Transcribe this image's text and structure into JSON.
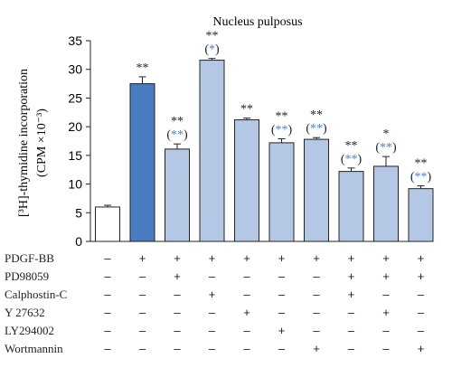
{
  "chart_data": {
    "type": "bar",
    "title": "Nucleus pulposus",
    "ylabel_line1": "[³H]-thymidine incorporation",
    "ylabel_line2": "(CPM ×10⁻³)",
    "ylim": [
      0,
      35
    ],
    "yticks": [
      "0",
      "5",
      "10",
      "15",
      "20",
      "25",
      "30",
      "35"
    ],
    "grid": false,
    "values": [
      6.0,
      27.5,
      16.1,
      31.6,
      21.2,
      17.2,
      17.8,
      12.2,
      13.1,
      9.2
    ],
    "errors": [
      0.3,
      1.2,
      0.9,
      0.3,
      0.3,
      0.7,
      0.3,
      0.6,
      1.7,
      0.5
    ],
    "colors": {
      "control": "#ffffff",
      "pdgf": "#4a7cc0",
      "inhibitor": "#b4c8e6",
      "outline": "#222222",
      "paren_stars": "#4a82c4"
    },
    "bar_style": [
      "control",
      "pdgf",
      "inhibitor",
      "inhibitor",
      "inhibitor",
      "inhibitor",
      "inhibitor",
      "inhibitor",
      "inhibitor",
      "inhibitor"
    ],
    "sig_top": [
      "",
      "**",
      "**",
      "**",
      "**",
      "**",
      "**",
      "**",
      "*",
      "**"
    ],
    "sig_paren": [
      "",
      "",
      "**",
      "*",
      "",
      "**",
      "**",
      "**",
      "**",
      "**"
    ],
    "treatments": [
      {
        "name": "PDGF-BB",
        "marks": [
          "–",
          "+",
          "+",
          "+",
          "+",
          "+",
          "+",
          "+",
          "+",
          "+"
        ]
      },
      {
        "name": "PD98059",
        "marks": [
          "–",
          "–",
          "+",
          "–",
          "–",
          "–",
          "–",
          "+",
          "+",
          "+"
        ]
      },
      {
        "name": "Calphostin-C",
        "marks": [
          "–",
          "–",
          "–",
          "+",
          "–",
          "–",
          "–",
          "+",
          "–",
          "–"
        ]
      },
      {
        "name": "Y 27632",
        "marks": [
          "–",
          "–",
          "–",
          "–",
          "+",
          "–",
          "–",
          "–",
          "+",
          "–"
        ]
      },
      {
        "name": "LY294002",
        "marks": [
          "–",
          "–",
          "–",
          "–",
          "–",
          "+",
          "–",
          "–",
          "–",
          "–"
        ]
      },
      {
        "name": "Wortmannin",
        "marks": [
          "–",
          "–",
          "–",
          "–",
          "–",
          "–",
          "+",
          "–",
          "–",
          "+"
        ]
      }
    ]
  }
}
